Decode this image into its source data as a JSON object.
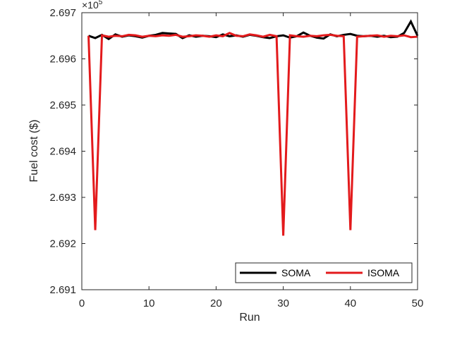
{
  "chart_data": {
    "type": "line",
    "xlabel": "Run",
    "ylabel": "Fuel cost ($)",
    "exponent_base": "×10",
    "exponent_power": "5",
    "xlim": [
      0,
      50
    ],
    "ylim": [
      2.691,
      2.697
    ],
    "x_ticks": [
      0,
      10,
      20,
      30,
      40,
      50
    ],
    "y_ticks": [
      2.691,
      2.692,
      2.693,
      2.694,
      2.695,
      2.696,
      2.697
    ],
    "y_tick_labels": [
      "2.691",
      "2.692",
      "2.693",
      "2.694",
      "2.695",
      "2.696",
      "2.697"
    ],
    "grid": false,
    "legend_position": "bottom-right",
    "legend_orientation": "horizontal",
    "x": [
      1,
      2,
      3,
      4,
      5,
      6,
      7,
      8,
      9,
      10,
      11,
      12,
      13,
      14,
      15,
      16,
      17,
      18,
      19,
      20,
      21,
      22,
      23,
      24,
      25,
      26,
      27,
      28,
      29,
      30,
      31,
      32,
      33,
      34,
      35,
      36,
      37,
      38,
      39,
      40,
      41,
      42,
      43,
      44,
      45,
      46,
      47,
      48,
      49,
      50
    ],
    "series": [
      {
        "name": "SOMA",
        "color": "#000000",
        "values": [
          2.6965,
          2.69645,
          2.69652,
          2.69643,
          2.69653,
          2.69648,
          2.69651,
          2.69649,
          2.69646,
          2.6965,
          2.69652,
          2.69656,
          2.69655,
          2.69654,
          2.69645,
          2.69651,
          2.69648,
          2.6965,
          2.69649,
          2.69647,
          2.69653,
          2.69649,
          2.69651,
          2.69648,
          2.69652,
          2.6965,
          2.69647,
          2.69645,
          2.69649,
          2.69651,
          2.69646,
          2.69649,
          2.69657,
          2.6965,
          2.69646,
          2.69644,
          2.69653,
          2.69649,
          2.69652,
          2.69654,
          2.6965,
          2.69649,
          2.6965,
          2.69648,
          2.6965,
          2.69647,
          2.69648,
          2.69656,
          2.69681,
          2.6965
        ]
      },
      {
        "name": "ISOMA",
        "color": "#e31a1c",
        "values": [
          2.6965,
          2.69229,
          2.69651,
          2.69648,
          2.6965,
          2.69649,
          2.69652,
          2.69651,
          2.69648,
          2.6965,
          2.69649,
          2.69651,
          2.6965,
          2.69652,
          2.69648,
          2.69649,
          2.69651,
          2.6965,
          2.69648,
          2.69651,
          2.69649,
          2.69656,
          2.6965,
          2.69649,
          2.69653,
          2.69651,
          2.69648,
          2.69652,
          2.69649,
          2.69217,
          2.69651,
          2.69649,
          2.69648,
          2.6965,
          2.69649,
          2.69651,
          2.69652,
          2.6965,
          2.69649,
          2.69229,
          2.69648,
          2.69649,
          2.6965,
          2.69651,
          2.69648,
          2.6965,
          2.69649,
          2.69651,
          2.69647,
          2.69648
        ]
      }
    ]
  }
}
